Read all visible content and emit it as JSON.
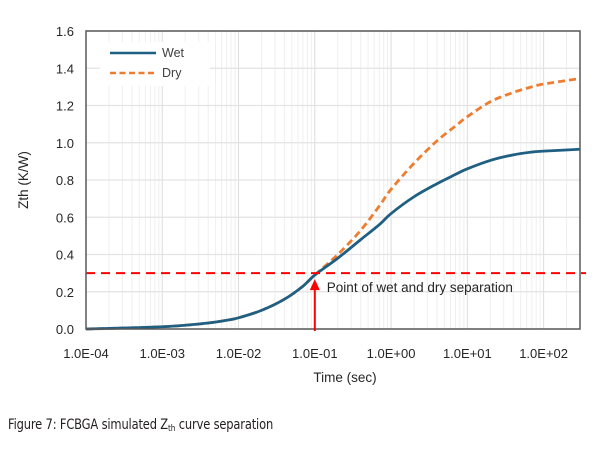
{
  "chart_data": {
    "type": "line",
    "title": "",
    "xlabel": "Time (sec)",
    "ylabel": "Zth (K/W)",
    "xscale": "log",
    "xlim": [
      0.0001,
      300
    ],
    "ylim": [
      0,
      1.6
    ],
    "grid": true,
    "legend_position": "top-left",
    "x_ticks": [
      0.0001,
      0.001,
      0.01,
      0.1,
      1,
      10,
      100
    ],
    "x_tick_labels": [
      "1.0E-04",
      "1.0E-03",
      "1.0E-02",
      "1.0E-01",
      "1.0E+00",
      "1.0E+01",
      "1.0E+02"
    ],
    "y_ticks": [
      0,
      0.2,
      0.4,
      0.6,
      0.8,
      1.0,
      1.2,
      1.4,
      1.6
    ],
    "y_tick_labels": [
      "0.0",
      "0.2",
      "0.4",
      "0.6",
      "0.8",
      "1.0",
      "1.2",
      "1.4",
      "1.6"
    ],
    "series": [
      {
        "name": "Wet",
        "color": "#1f5f82",
        "style": "solid",
        "x": [
          0.0001,
          0.0003,
          0.001,
          0.002,
          0.004,
          0.007,
          0.01,
          0.02,
          0.04,
          0.07,
          0.1,
          0.2,
          0.4,
          0.7,
          1,
          2,
          4,
          7,
          10,
          20,
          40,
          70,
          100,
          300
        ],
        "y": [
          0.0,
          0.005,
          0.012,
          0.02,
          0.032,
          0.047,
          0.06,
          0.1,
          0.16,
          0.23,
          0.29,
          0.38,
          0.48,
          0.56,
          0.62,
          0.71,
          0.78,
          0.83,
          0.86,
          0.905,
          0.935,
          0.95,
          0.955,
          0.965
        ]
      },
      {
        "name": "Dry",
        "color": "#ed7d31",
        "style": "dashed",
        "x": [
          0.0001,
          0.0003,
          0.001,
          0.002,
          0.004,
          0.007,
          0.01,
          0.02,
          0.04,
          0.07,
          0.1,
          0.2,
          0.4,
          0.7,
          1,
          2,
          4,
          7,
          10,
          20,
          40,
          70,
          100,
          300
        ],
        "y": [
          0.0,
          0.005,
          0.012,
          0.02,
          0.032,
          0.047,
          0.06,
          0.1,
          0.16,
          0.23,
          0.29,
          0.4,
          0.53,
          0.66,
          0.75,
          0.89,
          1.01,
          1.09,
          1.14,
          1.22,
          1.27,
          1.3,
          1.315,
          1.345
        ]
      }
    ],
    "reference_line": {
      "y": 0.3,
      "color": "#ff0000",
      "style": "dashed"
    },
    "annotations": [
      {
        "text": "Point of wet and dry separation",
        "x": 0.1,
        "y": 0.3,
        "arrow": true,
        "color": "#ff0000"
      }
    ]
  },
  "caption": {
    "prefix": "Figure 7: FCBGA simulated Z",
    "subscript": "th",
    "suffix": " curve separation"
  }
}
